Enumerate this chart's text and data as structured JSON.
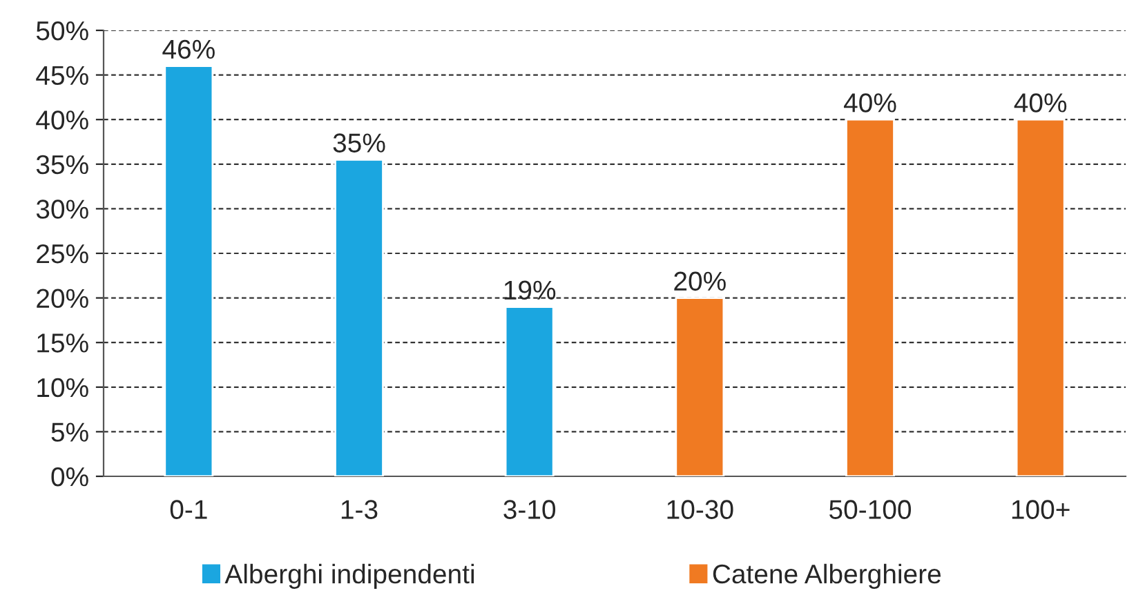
{
  "chart_data": {
    "type": "bar",
    "categories": [
      "0-1",
      "1-3",
      "3-10",
      "10-30",
      "50-100",
      "100+"
    ],
    "series": [
      {
        "name": "Alberghi indipendenti",
        "color": "#1ba6e0",
        "values": [
          46,
          35.5,
          19,
          null,
          null,
          null
        ],
        "value_labels": [
          "46%",
          "35%",
          "19%",
          null,
          null,
          null
        ]
      },
      {
        "name": "Catene Alberghiere",
        "color": "#f07a22",
        "values": [
          null,
          null,
          null,
          20,
          40,
          40
        ],
        "value_labels": [
          null,
          null,
          null,
          "20%",
          "40%",
          "40%"
        ]
      }
    ],
    "ylim": [
      0,
      50
    ],
    "yticks": [
      {
        "value": 0,
        "label": "0%"
      },
      {
        "value": 5,
        "label": "5%"
      },
      {
        "value": 10,
        "label": "10%"
      },
      {
        "value": 15,
        "label": "15%"
      },
      {
        "value": 20,
        "label": "20%"
      },
      {
        "value": 25,
        "label": "25%"
      },
      {
        "value": 30,
        "label": "30%"
      },
      {
        "value": 35,
        "label": "35%"
      },
      {
        "value": 40,
        "label": "40%"
      },
      {
        "value": 45,
        "label": "45%"
      },
      {
        "value": 50,
        "label": "50%"
      }
    ],
    "grid": "y",
    "line_style": "dashed",
    "legend": "bottom"
  }
}
